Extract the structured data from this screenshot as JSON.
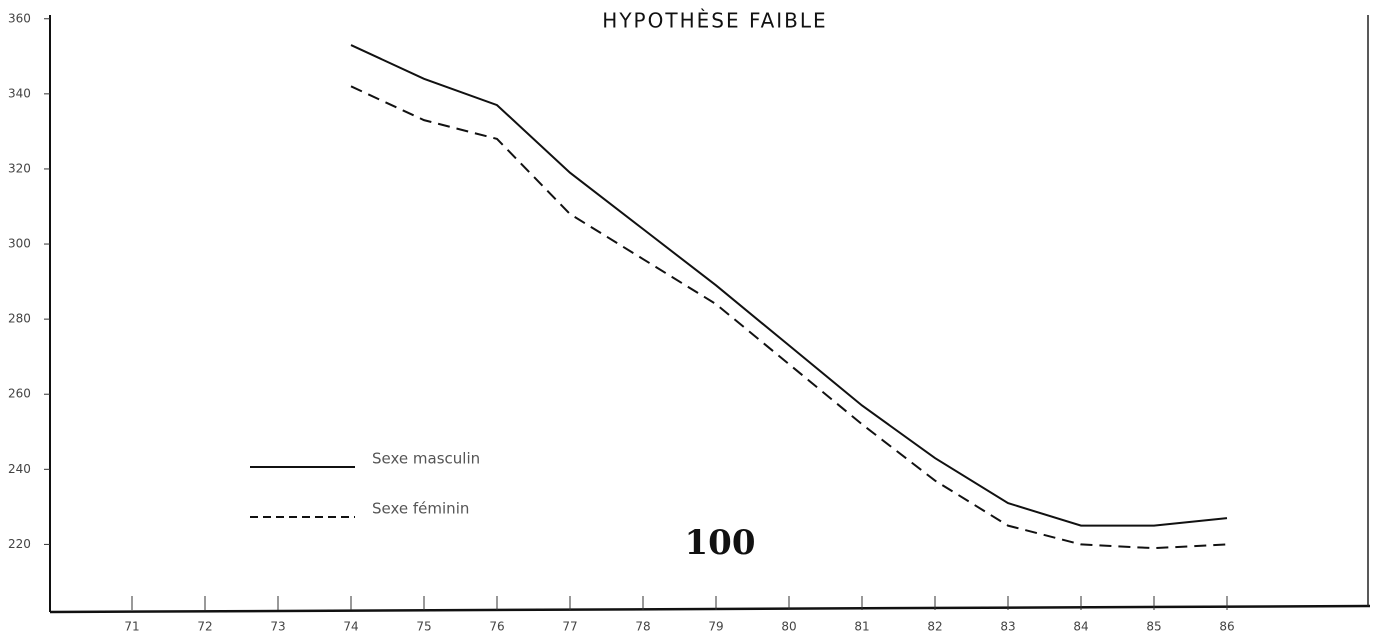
{
  "chart_data": {
    "type": "line",
    "title": "HYPOTHÈSE FAIBLE",
    "annotation": "100",
    "x": [
      74,
      75,
      76,
      77,
      78,
      79,
      80,
      81,
      82,
      83,
      84,
      85,
      86
    ],
    "series": [
      {
        "name": "Sexe masculin",
        "color": "#111111",
        "dash": "solid",
        "values": [
          353,
          344,
          337,
          319,
          304,
          289,
          273,
          257,
          243,
          231,
          225,
          225,
          227
        ]
      },
      {
        "name": "Sexe féminin",
        "color": "#111111",
        "dash": "dashed",
        "values": [
          342,
          333,
          328,
          308,
          296,
          284,
          268,
          252,
          237,
          225,
          220,
          219,
          220
        ]
      }
    ],
    "xlim": [
      70,
      88
    ],
    "xticks": [
      71,
      72,
      73,
      74,
      75,
      76,
      77,
      78,
      79,
      80,
      81,
      82,
      83,
      84,
      85,
      86
    ],
    "ylim": [
      202,
      361
    ],
    "yticks": [
      220,
      240,
      260,
      280,
      300,
      320,
      340,
      360
    ],
    "grid": false
  }
}
